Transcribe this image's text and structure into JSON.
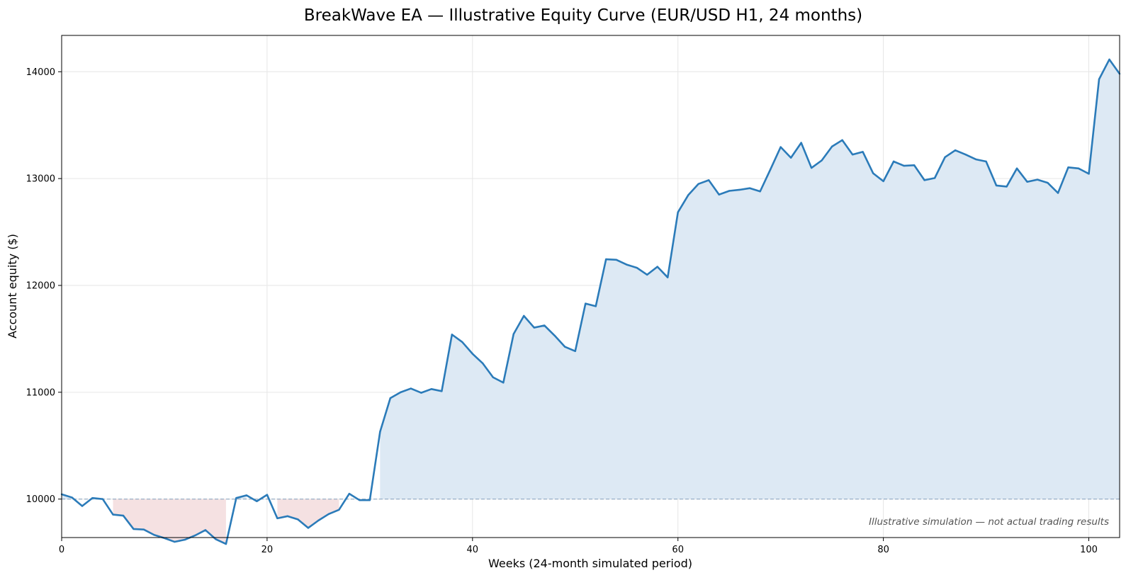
{
  "chart_data": {
    "type": "area",
    "title": "BreakWave EA — Illustrative Equity Curve (EUR/USD H1, 24 months)",
    "xlabel": "Weeks (24-month simulated period)",
    "ylabel": "Account equity ($)",
    "xlim": [
      0,
      103
    ],
    "ylim": [
      9640,
      14340
    ],
    "xticks": [
      0,
      20,
      40,
      60,
      80,
      100
    ],
    "yticks": [
      10000,
      11000,
      12000,
      13000,
      14000
    ],
    "baseline": 10000,
    "grid": true,
    "annotation": "Illustrative simulation — not actual trading results",
    "colors": {
      "line": "#2b7bb9",
      "gain_fill": "#dde9f4",
      "loss_fill": "#f5e1e2",
      "baseline": "#8fa8c1",
      "annotation": "#555555"
    },
    "series": [
      {
        "x": [
          0,
          1,
          2,
          3,
          4,
          5,
          6,
          7,
          8,
          9,
          10,
          11,
          12,
          13,
          14,
          15,
          16,
          17,
          18,
          19,
          20,
          21,
          22,
          23,
          24,
          25,
          26,
          27,
          28,
          29,
          30,
          31,
          32,
          33,
          34,
          35,
          36,
          37,
          38,
          39,
          40,
          41,
          42,
          43,
          44,
          45,
          46,
          47,
          48,
          49,
          50,
          51,
          52,
          53,
          54,
          55,
          56,
          57,
          58,
          59,
          60,
          61,
          62,
          63,
          64,
          65,
          66,
          67,
          68,
          69,
          70,
          71,
          72,
          73,
          74,
          75,
          76,
          77,
          78,
          79,
          80,
          81,
          82,
          83,
          84,
          85,
          86,
          87,
          88,
          89,
          90,
          91,
          92,
          93,
          94,
          95,
          96,
          97,
          98,
          99,
          100,
          101,
          102,
          103
        ],
        "values": [
          10045,
          10015,
          9935,
          10010,
          10000,
          9855,
          9845,
          9720,
          9715,
          9665,
          9635,
          9600,
          9620,
          9660,
          9710,
          9625,
          9580,
          10010,
          10035,
          9980,
          10040,
          9820,
          9840,
          9810,
          9730,
          9800,
          9860,
          9900,
          10050,
          9990,
          9990,
          10630,
          10945,
          11000,
          11035,
          10995,
          11030,
          11010,
          11540,
          11470,
          11360,
          11270,
          11140,
          11090,
          11545,
          11715,
          11605,
          11625,
          11530,
          11425,
          11385,
          11830,
          11805,
          12245,
          12240,
          12195,
          12165,
          12100,
          12175,
          12075,
          12685,
          12845,
          12950,
          12985,
          12850,
          12885,
          12895,
          12910,
          12880,
          13085,
          13295,
          13195,
          13335,
          13100,
          13170,
          13300,
          13360,
          13225,
          13250,
          13050,
          12975,
          13160,
          13120,
          13125,
          12985,
          13005,
          13200,
          13265,
          13225,
          13180,
          13160,
          12935,
          12925,
          13095,
          12970,
          12990,
          12960,
          12865,
          13105,
          13095,
          13045,
          13930,
          14115,
          13980
        ]
      }
    ]
  }
}
